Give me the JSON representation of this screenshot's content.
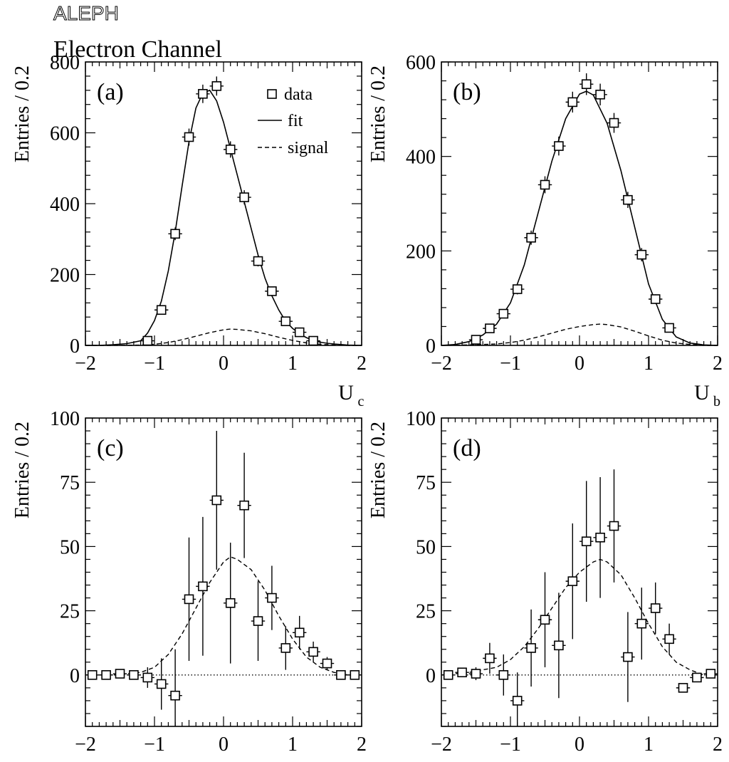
{
  "header": {
    "experiment": "ALEPH",
    "channel": "Electron Channel"
  },
  "legend": {
    "data_label": "data",
    "fit_label": "fit",
    "signal_label": "signal"
  },
  "chart_data": [
    {
      "panel": "(a)",
      "type": "scatter",
      "ylabel": "Entries / 0.2",
      "xlabel": "U",
      "xlabel_sub": "c",
      "xlim": [
        -2,
        2
      ],
      "ylim": [
        0,
        800
      ],
      "xticks": [
        -2,
        -1,
        0,
        1,
        2
      ],
      "xtick_labels": [
        "−2",
        "−1",
        "0",
        "1",
        "2"
      ],
      "yticks": [
        0,
        200,
        400,
        600,
        800
      ],
      "ytick_labels": [
        "0",
        "200",
        "400",
        "600",
        "800"
      ],
      "bin_halfwidth": 0.1,
      "legend_placement": "top-right",
      "zero_line": false,
      "points": [
        {
          "x": -1.1,
          "y": 13,
          "err": 5
        },
        {
          "x": -0.9,
          "y": 100,
          "err": 10
        },
        {
          "x": -0.7,
          "y": 315,
          "err": 18
        },
        {
          "x": -0.5,
          "y": 588,
          "err": 24
        },
        {
          "x": -0.3,
          "y": 710,
          "err": 26
        },
        {
          "x": -0.1,
          "y": 732,
          "err": 27
        },
        {
          "x": 0.1,
          "y": 553,
          "err": 23
        },
        {
          "x": 0.3,
          "y": 418,
          "err": 20
        },
        {
          "x": 0.5,
          "y": 238,
          "err": 15
        },
        {
          "x": 0.7,
          "y": 153,
          "err": 12
        },
        {
          "x": 0.9,
          "y": 68,
          "err": 8
        },
        {
          "x": 1.1,
          "y": 37,
          "err": 6
        },
        {
          "x": 1.3,
          "y": 13,
          "err": 4
        }
      ],
      "fit_curve": {
        "x": [
          -2.0,
          -1.8,
          -1.6,
          -1.4,
          -1.2,
          -1.1,
          -1.0,
          -0.9,
          -0.8,
          -0.7,
          -0.6,
          -0.5,
          -0.4,
          -0.3,
          -0.2,
          -0.1,
          0.0,
          0.1,
          0.2,
          0.3,
          0.4,
          0.5,
          0.6,
          0.7,
          0.8,
          0.9,
          1.0,
          1.1,
          1.2,
          1.3,
          1.4,
          1.5,
          1.6,
          1.8,
          2.0
        ],
        "y": [
          0,
          0,
          2,
          5,
          13,
          35,
          70,
          125,
          210,
          320,
          450,
          575,
          670,
          712,
          720,
          690,
          630,
          555,
          480,
          405,
          330,
          255,
          190,
          140,
          100,
          68,
          48,
          33,
          22,
          14,
          9,
          6,
          4,
          1,
          0
        ]
      },
      "signal_curve": {
        "x": [
          -2.0,
          -1.6,
          -1.2,
          -1.0,
          -0.8,
          -0.6,
          -0.4,
          -0.2,
          0.0,
          0.1,
          0.2,
          0.4,
          0.6,
          0.8,
          1.0,
          1.2,
          1.4,
          1.6,
          1.8,
          2.0
        ],
        "y": [
          0,
          0,
          1,
          3,
          8,
          16,
          26,
          36,
          44,
          46,
          45,
          41,
          33,
          23,
          14,
          7,
          3,
          1,
          0,
          0
        ]
      }
    },
    {
      "panel": "(b)",
      "type": "scatter",
      "ylabel": "Entries / 0.2",
      "xlabel": "U",
      "xlabel_sub": "b",
      "xlim": [
        -2,
        2
      ],
      "ylim": [
        0,
        600
      ],
      "xticks": [
        -2,
        -1,
        0,
        1,
        2
      ],
      "xtick_labels": [
        "−2",
        "−1",
        "0",
        "1",
        "2"
      ],
      "yticks": [
        0,
        200,
        400,
        600
      ],
      "ytick_labels": [
        "0",
        "200",
        "400",
        "600"
      ],
      "bin_halfwidth": 0.1,
      "zero_line": false,
      "points": [
        {
          "x": -1.5,
          "y": 12,
          "err": 4
        },
        {
          "x": -1.3,
          "y": 36,
          "err": 6
        },
        {
          "x": -1.1,
          "y": 67,
          "err": 8
        },
        {
          "x": -0.9,
          "y": 119,
          "err": 11
        },
        {
          "x": -0.7,
          "y": 228,
          "err": 15
        },
        {
          "x": -0.5,
          "y": 340,
          "err": 18
        },
        {
          "x": -0.3,
          "y": 422,
          "err": 20
        },
        {
          "x": -0.1,
          "y": 515,
          "err": 22
        },
        {
          "x": 0.1,
          "y": 553,
          "err": 23
        },
        {
          "x": 0.3,
          "y": 531,
          "err": 23
        },
        {
          "x": 0.5,
          "y": 471,
          "err": 21
        },
        {
          "x": 0.7,
          "y": 308,
          "err": 17
        },
        {
          "x": 0.9,
          "y": 192,
          "err": 14
        },
        {
          "x": 1.1,
          "y": 98,
          "err": 10
        },
        {
          "x": 1.3,
          "y": 37,
          "err": 6
        }
      ],
      "fit_curve": {
        "x": [
          -2.0,
          -1.8,
          -1.6,
          -1.4,
          -1.2,
          -1.0,
          -0.8,
          -0.6,
          -0.4,
          -0.2,
          0.0,
          0.1,
          0.2,
          0.4,
          0.6,
          0.8,
          1.0,
          1.2,
          1.4,
          1.6,
          1.8,
          2.0
        ],
        "y": [
          0,
          2,
          8,
          22,
          45,
          90,
          170,
          280,
          390,
          480,
          532,
          538,
          530,
          470,
          370,
          250,
          130,
          55,
          18,
          5,
          1,
          0
        ]
      },
      "signal_curve": {
        "x": [
          -2.0,
          -1.6,
          -1.2,
          -1.0,
          -0.8,
          -0.6,
          -0.4,
          -0.2,
          0.0,
          0.2,
          0.3,
          0.4,
          0.6,
          0.8,
          1.0,
          1.2,
          1.4,
          1.6,
          1.8,
          2.0
        ],
        "y": [
          0,
          1,
          3,
          6,
          11,
          18,
          26,
          34,
          40,
          44,
          45,
          44,
          39,
          30,
          20,
          11,
          5,
          2,
          0,
          0
        ]
      }
    },
    {
      "panel": "(c)",
      "type": "scatter",
      "ylabel": "Entries / 0.2",
      "xlabel": "U",
      "xlabel_sub": "c",
      "xlim": [
        -2,
        2
      ],
      "ylim": [
        -20,
        100
      ],
      "xticks": [
        -2,
        -1,
        0,
        1,
        2
      ],
      "xtick_labels": [
        "−2",
        "−1",
        "0",
        "1",
        "2"
      ],
      "yticks": [
        0,
        25,
        50,
        75,
        100
      ],
      "ytick_labels": [
        "0",
        "25",
        "50",
        "75",
        "100"
      ],
      "bin_halfwidth": 0.1,
      "zero_line": true,
      "points": [
        {
          "x": -1.9,
          "y": 0,
          "err": 0.5
        },
        {
          "x": -1.7,
          "y": 0,
          "err": 0.5
        },
        {
          "x": -1.5,
          "y": 0.5,
          "err": 0.8
        },
        {
          "x": -1.3,
          "y": 0,
          "err": 0.8
        },
        {
          "x": -1.1,
          "y": -1,
          "err": 4
        },
        {
          "x": -0.9,
          "y": -3.5,
          "err": 10
        },
        {
          "x": -0.7,
          "y": -8,
          "err": 18
        },
        {
          "x": -0.5,
          "y": 29.5,
          "err": 24
        },
        {
          "x": -0.3,
          "y": 34.5,
          "err": 27
        },
        {
          "x": -0.1,
          "y": 68,
          "err": 27
        },
        {
          "x": 0.1,
          "y": 28,
          "err": 23.5
        },
        {
          "x": 0.3,
          "y": 66,
          "err": 20.5
        },
        {
          "x": 0.5,
          "y": 21,
          "err": 15.5
        },
        {
          "x": 0.7,
          "y": 30,
          "err": 12.5
        },
        {
          "x": 0.9,
          "y": 10.5,
          "err": 8.5
        },
        {
          "x": 1.1,
          "y": 16.5,
          "err": 6.5
        },
        {
          "x": 1.3,
          "y": 9,
          "err": 4
        },
        {
          "x": 1.5,
          "y": 4.5,
          "err": 2.5
        },
        {
          "x": 1.7,
          "y": 0,
          "err": 1.5
        },
        {
          "x": 1.9,
          "y": 0,
          "err": 1
        }
      ],
      "signal_curve": {
        "x": [
          -2.0,
          -1.6,
          -1.2,
          -1.0,
          -0.8,
          -0.6,
          -0.4,
          -0.2,
          0.0,
          0.1,
          0.2,
          0.4,
          0.6,
          0.8,
          1.0,
          1.2,
          1.4,
          1.6,
          1.8,
          2.0
        ],
        "y": [
          0,
          0,
          1,
          3,
          8,
          16,
          26,
          36,
          44,
          46,
          45,
          41,
          33,
          23,
          14,
          7,
          3,
          1,
          0,
          0
        ]
      }
    },
    {
      "panel": "(d)",
      "type": "scatter",
      "ylabel": "Entries / 0.2",
      "xlabel": "U",
      "xlabel_sub": "b",
      "xlim": [
        -2,
        2
      ],
      "ylim": [
        -20,
        100
      ],
      "xticks": [
        -2,
        -1,
        0,
        1,
        2
      ],
      "xtick_labels": [
        "−2",
        "−1",
        "0",
        "1",
        "2"
      ],
      "yticks": [
        0,
        25,
        50,
        75,
        100
      ],
      "ytick_labels": [
        "0",
        "25",
        "50",
        "75",
        "100"
      ],
      "bin_halfwidth": 0.1,
      "zero_line": true,
      "points": [
        {
          "x": -1.9,
          "y": 0,
          "err": 0.5
        },
        {
          "x": -1.7,
          "y": 1,
          "err": 1.5
        },
        {
          "x": -1.5,
          "y": 0.5,
          "err": 2.5
        },
        {
          "x": -1.3,
          "y": 6.5,
          "err": 6
        },
        {
          "x": -1.1,
          "y": 0,
          "err": 8
        },
        {
          "x": -0.9,
          "y": -10,
          "err": 11
        },
        {
          "x": -0.7,
          "y": 10.5,
          "err": 15
        },
        {
          "x": -0.5,
          "y": 21.5,
          "err": 18.5
        },
        {
          "x": -0.3,
          "y": 11.5,
          "err": 20.5
        },
        {
          "x": -0.1,
          "y": 36.5,
          "err": 22.5
        },
        {
          "x": 0.1,
          "y": 52,
          "err": 23.5
        },
        {
          "x": 0.3,
          "y": 53.5,
          "err": 23.5
        },
        {
          "x": 0.5,
          "y": 58,
          "err": 22
        },
        {
          "x": 0.7,
          "y": 7,
          "err": 17.5
        },
        {
          "x": 0.9,
          "y": 20,
          "err": 14
        },
        {
          "x": 1.1,
          "y": 26,
          "err": 10
        },
        {
          "x": 1.3,
          "y": 14,
          "err": 6
        },
        {
          "x": 1.5,
          "y": -5,
          "err": 1
        },
        {
          "x": 1.7,
          "y": -1,
          "err": 1
        },
        {
          "x": 1.9,
          "y": 0.5,
          "err": 1
        }
      ],
      "signal_curve": {
        "x": [
          -2.0,
          -1.6,
          -1.2,
          -1.0,
          -0.8,
          -0.6,
          -0.4,
          -0.2,
          0.0,
          0.2,
          0.3,
          0.4,
          0.6,
          0.8,
          1.0,
          1.2,
          1.4,
          1.6,
          1.8,
          2.0
        ],
        "y": [
          0,
          1,
          3,
          6,
          11,
          18,
          26,
          34,
          40,
          44,
          45,
          44,
          39,
          30,
          20,
          11,
          5,
          2,
          0,
          0
        ]
      }
    }
  ]
}
